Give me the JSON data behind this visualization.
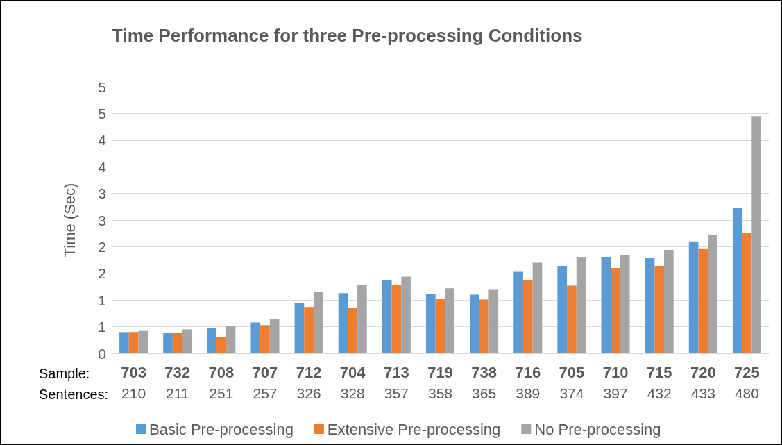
{
  "chart_data": {
    "type": "bar",
    "title": "Time Performance for three Pre-processing Conditions",
    "ylabel": "Time (Sec)",
    "categories": [
      "703\n210",
      "732\n211",
      "708\n251",
      "707\n257",
      "712\n326",
      "704\n328",
      "713\n357",
      "719\n358",
      "738\n365",
      "716\n389",
      "705\n374",
      "710\n397",
      "715\n432",
      "720\n433",
      "725\n480"
    ],
    "series": [
      {
        "name": "Basic Pre-processing",
        "color": "#5b9bd5",
        "values": [
          0.4,
          0.39,
          0.48,
          0.58,
          0.95,
          1.13,
          1.38,
          1.12,
          1.1,
          1.53,
          1.64,
          1.81,
          1.79,
          2.1,
          2.73
        ]
      },
      {
        "name": "Extensive Pre-processing",
        "color": "#ed7d31",
        "values": [
          0.4,
          0.38,
          0.31,
          0.53,
          0.87,
          0.86,
          1.29,
          1.03,
          1.01,
          1.38,
          1.27,
          1.6,
          1.64,
          1.97,
          2.26
        ]
      },
      {
        "name": "No Pre-processing",
        "color": "#a5a5a5",
        "values": [
          0.42,
          0.45,
          0.51,
          0.65,
          1.16,
          1.29,
          1.44,
          1.22,
          1.19,
          1.7,
          1.81,
          1.84,
          1.94,
          2.22,
          4.45
        ]
      }
    ],
    "ylim": [
      0,
      5
    ],
    "yticks": [
      0,
      {
        "value": 0.5,
        "label": "1"
      },
      1,
      {
        "value": 1.5,
        "label": "2"
      },
      2,
      {
        "value": 2.5,
        "label": "3"
      },
      3,
      {
        "value": 3.5,
        "label": "4"
      },
      4,
      {
        "value": 4.5,
        "label": "5"
      },
      5
    ],
    "annotations": [
      "Sample:",
      "Sentences:"
    ],
    "grid": "y",
    "legend": "bottom"
  }
}
